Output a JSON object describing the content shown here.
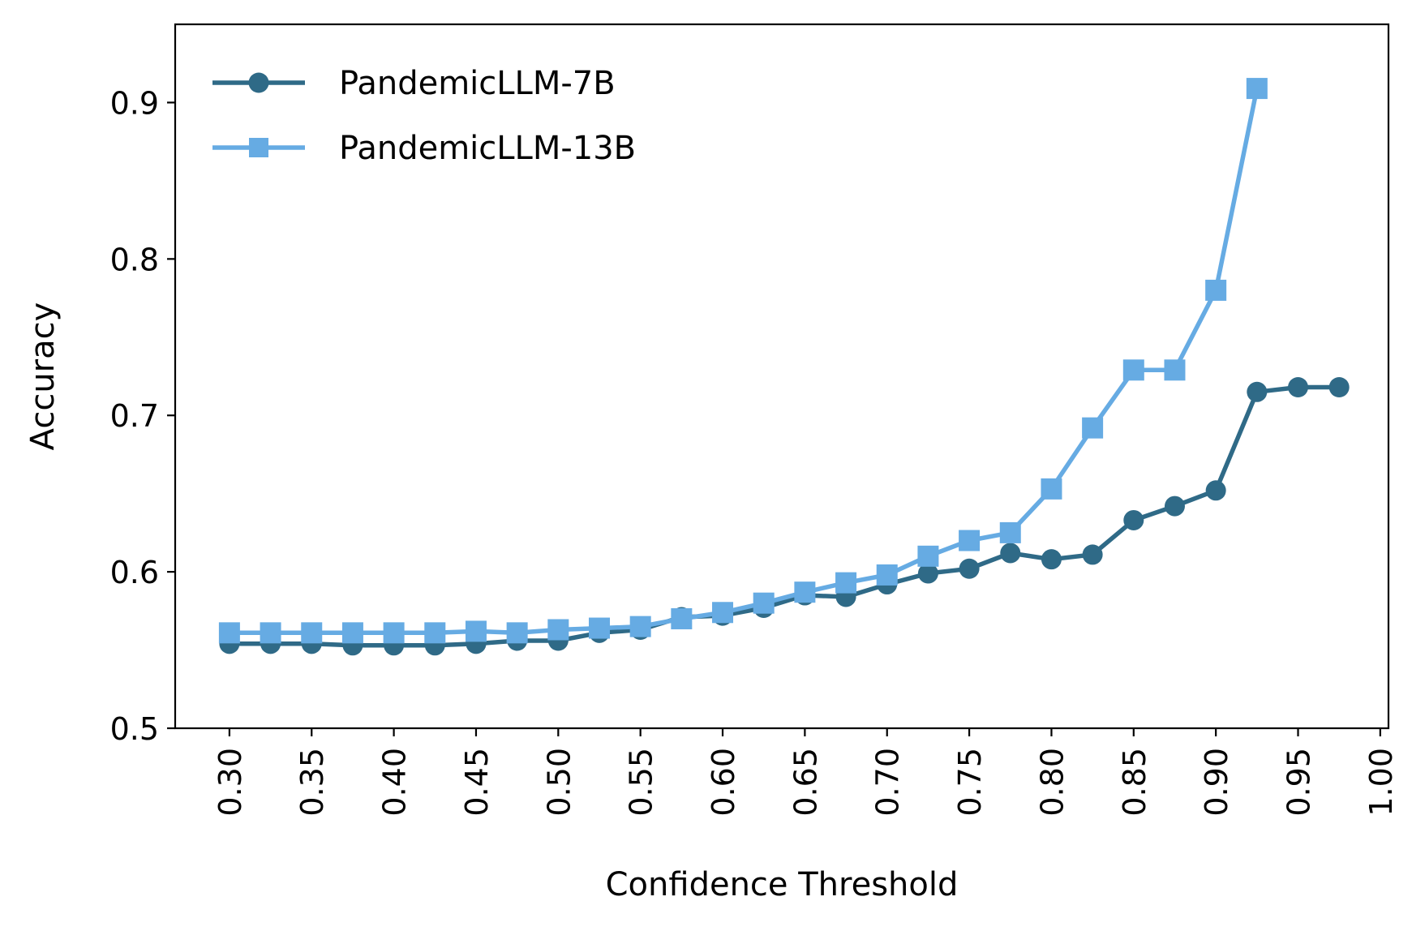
{
  "chart_data": {
    "type": "line",
    "xlabel": "Confidence Threshold",
    "ylabel": "Accuracy",
    "xlim": [
      0.267,
      1.005
    ],
    "ylim": [
      0.5,
      0.95
    ],
    "xticks": [
      "0.30",
      "0.35",
      "0.40",
      "0.45",
      "0.50",
      "0.55",
      "0.60",
      "0.65",
      "0.70",
      "0.75",
      "0.80",
      "0.85",
      "0.90",
      "0.95",
      "1.00"
    ],
    "yticks": [
      "0.5",
      "0.6",
      "0.7",
      "0.8",
      "0.9"
    ],
    "grid": false,
    "legend_position": "top-left",
    "series": [
      {
        "name": "PandemicLLM-7B",
        "color": "#2f6a87",
        "marker": "circle",
        "x": [
          0.3,
          0.325,
          0.35,
          0.375,
          0.4,
          0.425,
          0.45,
          0.475,
          0.5,
          0.525,
          0.55,
          0.575,
          0.6,
          0.625,
          0.65,
          0.675,
          0.7,
          0.725,
          0.75,
          0.775,
          0.8,
          0.825,
          0.85,
          0.875,
          0.9,
          0.925,
          0.95,
          0.975
        ],
        "y": [
          0.554,
          0.554,
          0.554,
          0.553,
          0.553,
          0.553,
          0.554,
          0.556,
          0.556,
          0.561,
          0.563,
          0.571,
          0.572,
          0.577,
          0.585,
          0.584,
          0.592,
          0.599,
          0.602,
          0.612,
          0.608,
          0.611,
          0.633,
          0.642,
          0.652,
          0.715,
          0.718,
          0.718
        ]
      },
      {
        "name": "PandemicLLM-13B",
        "color": "#66abe3",
        "marker": "square",
        "x": [
          0.3,
          0.325,
          0.35,
          0.375,
          0.4,
          0.425,
          0.45,
          0.475,
          0.5,
          0.525,
          0.55,
          0.575,
          0.6,
          0.625,
          0.65,
          0.675,
          0.7,
          0.725,
          0.75,
          0.775,
          0.8,
          0.825,
          0.85,
          0.875,
          0.9,
          0.925
        ],
        "y": [
          0.561,
          0.561,
          0.561,
          0.561,
          0.561,
          0.561,
          0.562,
          0.561,
          0.563,
          0.564,
          0.565,
          0.57,
          0.574,
          0.58,
          0.587,
          0.593,
          0.598,
          0.61,
          0.62,
          0.625,
          0.653,
          0.692,
          0.729,
          0.729,
          0.78,
          0.909
        ]
      }
    ]
  }
}
